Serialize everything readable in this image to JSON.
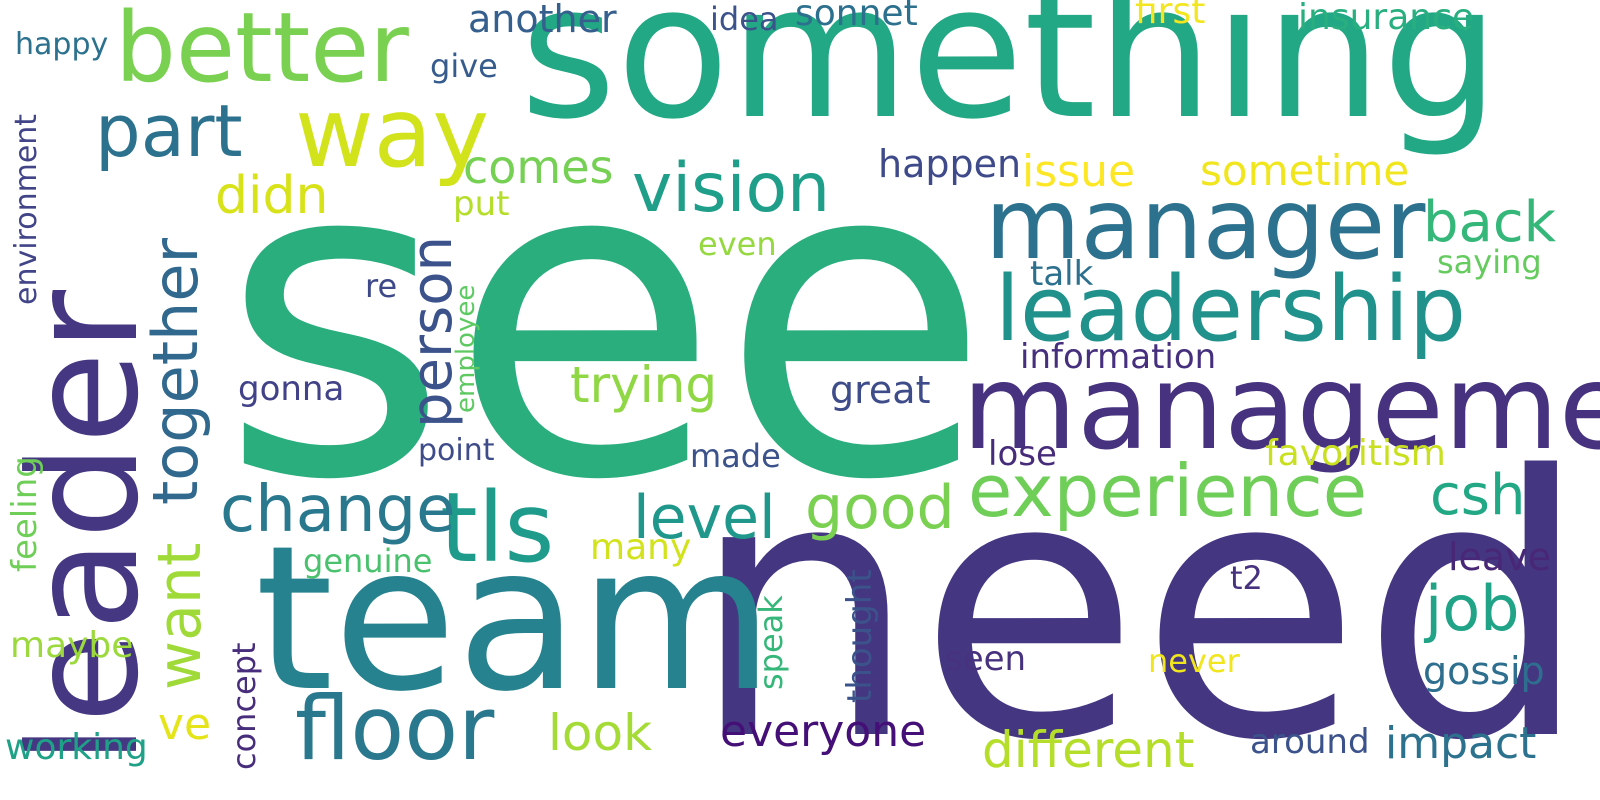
{
  "words": [
    {
      "text": "see",
      "color": "#2aae7d",
      "vertical": false
    },
    {
      "text": "need",
      "color": "#453681",
      "vertical": false
    },
    {
      "text": "something",
      "color": "#22a884",
      "vertical": false
    },
    {
      "text": "team",
      "color": "#26828e",
      "vertical": false
    },
    {
      "text": "leader",
      "color": "#453781",
      "vertical": true
    },
    {
      "text": "management",
      "color": "#46327e",
      "vertical": false
    },
    {
      "text": "manager",
      "color": "#2c728e",
      "vertical": false
    },
    {
      "text": "leadership",
      "color": "#21918c",
      "vertical": false
    },
    {
      "text": "better",
      "color": "#7ad151",
      "vertical": false
    },
    {
      "text": "way",
      "color": "#d2e21b",
      "vertical": false
    },
    {
      "text": "experience",
      "color": "#6ece58",
      "vertical": false
    },
    {
      "text": "tls",
      "color": "#1e9b8a",
      "vertical": false
    },
    {
      "text": "floor",
      "color": "#2a788e",
      "vertical": false
    },
    {
      "text": "vision",
      "color": "#1f9e89",
      "vertical": false
    },
    {
      "text": "part",
      "color": "#2c728e",
      "vertical": false
    },
    {
      "text": "together",
      "color": "#31688e",
      "vertical": true
    },
    {
      "text": "change",
      "color": "#2a788e",
      "vertical": false
    },
    {
      "text": "person",
      "color": "#3b528b",
      "vertical": true
    },
    {
      "text": "level",
      "color": "#1f988b",
      "vertical": false
    },
    {
      "text": "good",
      "color": "#7ad151",
      "vertical": false
    },
    {
      "text": "job",
      "color": "#20a386",
      "vertical": false
    },
    {
      "text": "csh",
      "color": "#22a884",
      "vertical": false
    },
    {
      "text": "want",
      "color": "#a0da39",
      "vertical": true
    },
    {
      "text": "trying",
      "color": "#8fd744",
      "vertical": false
    },
    {
      "text": "different",
      "color": "#b5de2b",
      "vertical": false
    },
    {
      "text": "back",
      "color": "#35b779",
      "vertical": false
    },
    {
      "text": "impact",
      "color": "#2c728e",
      "vertical": false
    },
    {
      "text": "comes",
      "color": "#75d054",
      "vertical": false
    },
    {
      "text": "didn",
      "color": "#d8e219",
      "vertical": false
    },
    {
      "text": "everyone",
      "color": "#440f76",
      "vertical": false
    },
    {
      "text": "look",
      "color": "#a5db36",
      "vertical": false
    },
    {
      "text": "issue",
      "color": "#fde725",
      "vertical": false
    },
    {
      "text": "sometime",
      "color": "#f1e51d",
      "vertical": false
    },
    {
      "text": "ve",
      "color": "#e5e419",
      "vertical": false
    },
    {
      "text": "another",
      "color": "#355f8d",
      "vertical": false
    },
    {
      "text": "sonnet",
      "color": "#2d708e",
      "vertical": false
    },
    {
      "text": "insurance",
      "color": "#29af7f",
      "vertical": false
    },
    {
      "text": "first",
      "color": "#f4e61e",
      "vertical": false
    },
    {
      "text": "happen",
      "color": "#3e4a89",
      "vertical": false
    },
    {
      "text": "great",
      "color": "#3e4c8a",
      "vertical": false
    },
    {
      "text": "information",
      "color": "#46307e",
      "vertical": false
    },
    {
      "text": "favoritism",
      "color": "#c8e020",
      "vertical": false
    },
    {
      "text": "gossip",
      "color": "#2e6e8e",
      "vertical": false
    },
    {
      "text": "leave",
      "color": "#482777",
      "vertical": false
    },
    {
      "text": "around",
      "color": "#3b528b",
      "vertical": false
    },
    {
      "text": "working",
      "color": "#1fa188",
      "vertical": false
    },
    {
      "text": "maybe",
      "color": "#9bd93c",
      "vertical": false
    },
    {
      "text": "seen",
      "color": "#46327e",
      "vertical": false
    },
    {
      "text": "never",
      "color": "#f1e51d",
      "vertical": false
    },
    {
      "text": "lose",
      "color": "#472c7a",
      "vertical": false
    },
    {
      "text": "gonna",
      "color": "#414287",
      "vertical": false
    },
    {
      "text": "talk",
      "color": "#2d708e",
      "vertical": false
    },
    {
      "text": "saying",
      "color": "#65cb5e",
      "vertical": false
    },
    {
      "text": "even",
      "color": "#95d840",
      "vertical": false
    },
    {
      "text": "idea",
      "color": "#3b528b",
      "vertical": false
    },
    {
      "text": "give",
      "color": "#365c8d",
      "vertical": false
    },
    {
      "text": "put",
      "color": "#b5de2b",
      "vertical": false
    },
    {
      "text": "many",
      "color": "#d2e21b",
      "vertical": false
    },
    {
      "text": "made",
      "color": "#3b528b",
      "vertical": false
    },
    {
      "text": "point",
      "color": "#3e4c8a",
      "vertical": false
    },
    {
      "text": "genuine",
      "color": "#4ac16d",
      "vertical": false
    },
    {
      "text": "t2",
      "color": "#46327e",
      "vertical": false
    },
    {
      "text": "re",
      "color": "#3e4989",
      "vertical": false
    },
    {
      "text": "happy",
      "color": "#2c728e",
      "vertical": false
    },
    {
      "text": "environment",
      "color": "#414487",
      "vertical": true
    },
    {
      "text": "employee",
      "color": "#5ec962",
      "vertical": true
    },
    {
      "text": "feeling",
      "color": "#6ece58",
      "vertical": true
    },
    {
      "text": "concept",
      "color": "#472d7b",
      "vertical": true
    },
    {
      "text": "speak",
      "color": "#35b779",
      "vertical": true
    },
    {
      "text": "thought",
      "color": "#3b528b",
      "vertical": true
    }
  ]
}
